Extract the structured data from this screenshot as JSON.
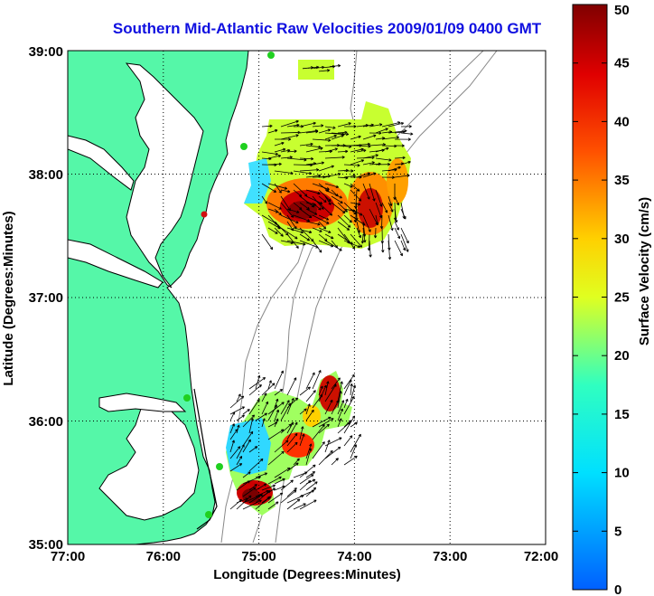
{
  "chart_data": {
    "type": "heatmap",
    "title": "Southern Mid-Atlantic Raw Velocities 2009/01/09 0400 GMT",
    "xlabel": "Longitude (Degrees:Minutes)",
    "ylabel": "Latitude (Degrees:Minutes)",
    "xlim": [
      -77,
      -72
    ],
    "ylim": [
      35,
      39
    ],
    "x_ticks": [
      "77:00",
      "76:00",
      "75:00",
      "74:00",
      "73:00",
      "72:00"
    ],
    "y_ticks": [
      "35:00",
      "36:00",
      "37:00",
      "38:00",
      "39:00"
    ],
    "grid": true,
    "colorbar": {
      "label": "Surface Velocity (cm/s)",
      "range": [
        0,
        50
      ],
      "ticks": [
        "0",
        "5",
        "10",
        "15",
        "20",
        "25",
        "30",
        "35",
        "40",
        "45",
        "50"
      ]
    },
    "regions": [
      {
        "name": "north",
        "lon": [
          -75.0,
          -73.4
        ],
        "lat": [
          37.5,
          38.5
        ],
        "speed_range": [
          5,
          50
        ]
      },
      {
        "name": "south",
        "lon": [
          -75.3,
          -73.7
        ],
        "lat": [
          35.3,
          36.5
        ],
        "speed_range": [
          5,
          50
        ]
      }
    ]
  },
  "colors": {
    "land": "#55f7a8",
    "coast": "#000000",
    "title": "#1010e0",
    "isobath": "#888888"
  }
}
